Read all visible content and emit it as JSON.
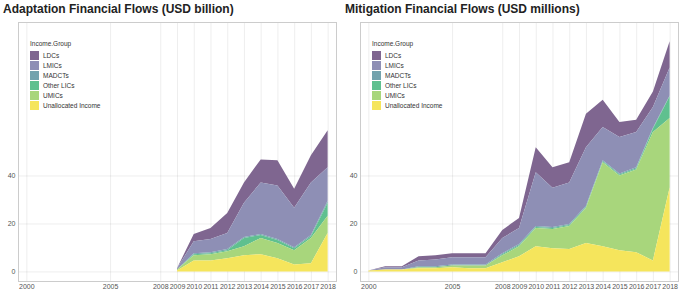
{
  "chart_data": [
    {
      "type": "area",
      "title": "Adaptation Financial Flows (USD billion)",
      "stacked": true,
      "grid": true,
      "legend": "top-left",
      "legend_title": "Income.Group",
      "x": [
        2009,
        2010,
        2011,
        2012,
        2013,
        2014,
        2015,
        2016,
        2017,
        2018
      ],
      "xlim": [
        1999.5,
        2018.5
      ],
      "xticks": [
        2000,
        2005,
        2008,
        2009,
        2010,
        2011,
        2012,
        2013,
        2014,
        2015,
        2016,
        2017,
        2018
      ],
      "ylim": [
        -4,
        104
      ],
      "yticks": [
        0,
        20,
        40
      ],
      "series": [
        {
          "name": "LDCs",
          "color": "#7f6690",
          "values": [
            0,
            3.0,
            4.6,
            8.4,
            8.5,
            9.6,
            10.5,
            8.0,
            11.3,
            15.5
          ]
        },
        {
          "name": "LMICs",
          "color": "#8e8fb5",
          "values": [
            0.5,
            5.0,
            5.5,
            6.7,
            14.3,
            21.5,
            22.3,
            16.4,
            21.9,
            13.9
          ]
        },
        {
          "name": "MADCTs",
          "color": "#73a3ad",
          "values": [
            0,
            0.4,
            0.4,
            0.5,
            0.4,
            0.4,
            0.4,
            0.4,
            0.5,
            0.9
          ]
        },
        {
          "name": "Other LICs",
          "color": "#5fc08f",
          "values": [
            0,
            0.5,
            0.4,
            0.4,
            3.4,
            1.3,
            1.3,
            0.9,
            0.8,
            5.4
          ]
        },
        {
          "name": "UMICs",
          "color": "#a8d67c",
          "values": [
            0.4,
            2.1,
            2.6,
            2.9,
            3.8,
            6.7,
            6.3,
            5.9,
            10.5,
            7.2
          ]
        },
        {
          "name": "Unallocated Income",
          "color": "#f5e55c",
          "values": [
            0.4,
            4.6,
            4.6,
            5.5,
            6.7,
            7.2,
            5.5,
            2.9,
            3.4,
            16.0
          ]
        }
      ]
    },
    {
      "type": "area",
      "title": "Mitigation Financial Flows (USD millions)",
      "stacked": true,
      "grid": true,
      "legend": "top-left",
      "legend_title": "Income.Group",
      "x": [
        2000,
        2001,
        2002,
        2003,
        2004,
        2005,
        2006,
        2007,
        2008,
        2009,
        2010,
        2011,
        2012,
        2013,
        2014,
        2015,
        2016,
        2017,
        2018
      ],
      "xlim": [
        1999.5,
        2018.5
      ],
      "xticks": [
        2000,
        2005,
        2008,
        2009,
        2010,
        2011,
        2012,
        2013,
        2014,
        2015,
        2016,
        2017,
        2018
      ],
      "ylim": [
        -4,
        104
      ],
      "yticks": [
        0,
        20,
        40
      ],
      "series": [
        {
          "name": "LDCs",
          "color": "#7f6690",
          "values": [
            0,
            0.4,
            0.4,
            1.7,
            1.7,
            1.7,
            1.7,
            1.7,
            3.4,
            4.2,
            10.5,
            8.5,
            8.4,
            13.9,
            11.4,
            6.3,
            5.1,
            6.4,
            11
          ]
        },
        {
          "name": "LMICs",
          "color": "#8e8fb5",
          "values": [
            0,
            0.9,
            0.9,
            2.5,
            2.9,
            3.0,
            3.0,
            3.0,
            6.3,
            6.7,
            22.4,
            16.4,
            17.3,
            24.4,
            13.9,
            15.2,
            14.7,
            8.7,
            11.6
          ]
        },
        {
          "name": "MADCTs",
          "color": "#73a3ad",
          "values": [
            0,
            0,
            0,
            0.4,
            0.4,
            0.4,
            0.4,
            0.4,
            0.4,
            0.5,
            0.4,
            0.4,
            0.4,
            0.5,
            0.4,
            0.4,
            0.5,
            0.4,
            0.4
          ]
        },
        {
          "name": "Other LICs",
          "color": "#5fc08f",
          "values": [
            0,
            0,
            0,
            0,
            0,
            0,
            0,
            0,
            0.5,
            0.4,
            0.4,
            0.4,
            0.5,
            0.4,
            0.4,
            0.4,
            0.4,
            1.4,
            9
          ]
        },
        {
          "name": "UMICs",
          "color": "#a8d67c",
          "values": [
            0,
            0,
            0,
            0.4,
            0.4,
            0.8,
            1.2,
            1.2,
            2.9,
            4.2,
            7.6,
            8.0,
            9.6,
            14.7,
            35.0,
            31.2,
            34.5,
            53.5,
            29
          ]
        },
        {
          "name": "Unallocated Income",
          "color": "#f5e55c",
          "values": [
            0.4,
            0.8,
            0.8,
            1.3,
            1.3,
            1.7,
            1.3,
            1.3,
            3.8,
            6.3,
            10.5,
            9.7,
            9.3,
            11.8,
            10.5,
            8.8,
            8.0,
            4.6,
            35
          ]
        }
      ]
    }
  ]
}
